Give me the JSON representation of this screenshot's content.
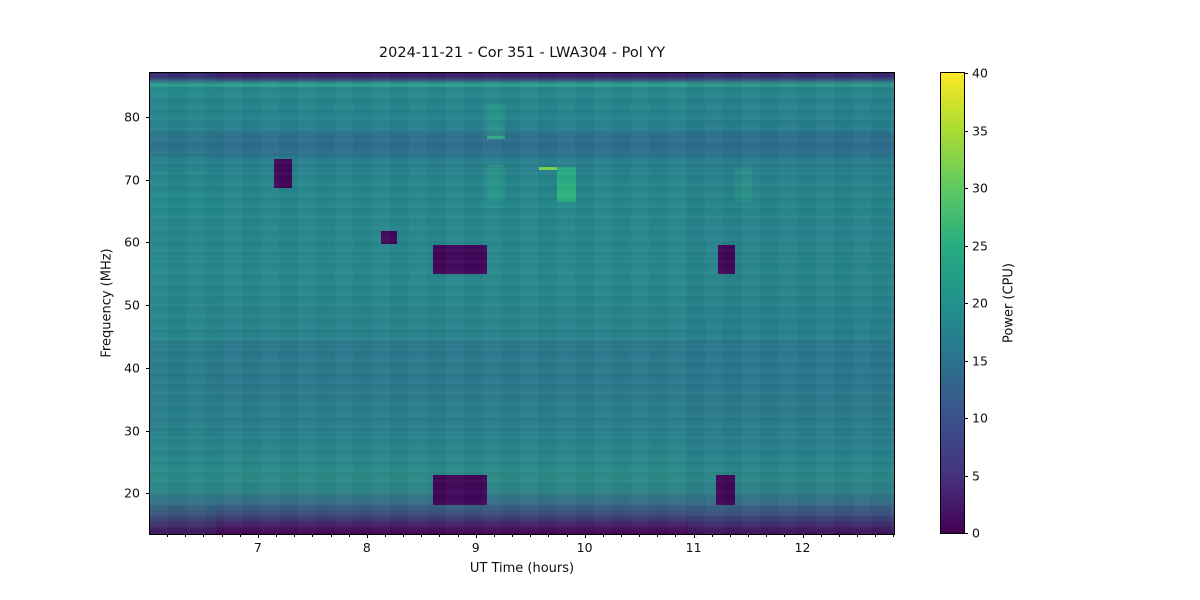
{
  "chart_data": {
    "type": "heatmap",
    "title": "2024-11-21 - Cor 351 - LWA304 - Pol YY",
    "xlabel": "UT Time (hours)",
    "ylabel": "Frequency (MHz)",
    "colorbar_label": "Power (CPU)",
    "colormap": "viridis",
    "x_range": [
      6.01,
      12.84
    ],
    "y_range": [
      13.5,
      87.0
    ],
    "x_ticks": [
      7,
      8,
      9,
      10,
      11,
      12
    ],
    "x_minor_step": 0.166667,
    "y_ticks": [
      20,
      30,
      40,
      50,
      60,
      70,
      80
    ],
    "colorbar_range": [
      0,
      40
    ],
    "colorbar_ticks": [
      0,
      5,
      10,
      15,
      20,
      25,
      30,
      35,
      40
    ],
    "colorbar_stops": [
      {
        "v": 0,
        "c": "#440154"
      },
      {
        "v": 5,
        "c": "#46327e"
      },
      {
        "v": 10,
        "c": "#3b528b"
      },
      {
        "v": 15,
        "c": "#2c728e"
      },
      {
        "v": 20,
        "c": "#21918c"
      },
      {
        "v": 25,
        "c": "#27ad81"
      },
      {
        "v": 30,
        "c": "#5ec962"
      },
      {
        "v": 35,
        "c": "#aadc32"
      },
      {
        "v": 40,
        "c": "#fde725"
      }
    ],
    "background_description": "teal background power ~15-20 CPU; dark indigo band at top edge, dark purple fade at bottom edge, later times slightly bluer",
    "background_stops": [
      {
        "f": 87.0,
        "c": "#32135f"
      },
      {
        "f": 86.4,
        "c": "#3c2271"
      },
      {
        "f": 85.9,
        "c": "#39537f"
      },
      {
        "f": 85.45,
        "c": "#2e8a8c"
      },
      {
        "f": 85.1,
        "c": "#2aa389"
      },
      {
        "f": 84.6,
        "c": "#278b8d"
      },
      {
        "f": 83.0,
        "c": "#26868e"
      },
      {
        "f": 80.0,
        "c": "#26858e"
      },
      {
        "f": 78.0,
        "c": "#287f8e"
      },
      {
        "f": 76.9,
        "c": "#2d6f8d"
      },
      {
        "f": 74.5,
        "c": "#2c6e8d"
      },
      {
        "f": 73.3,
        "c": "#287e8e"
      },
      {
        "f": 70.0,
        "c": "#26868d"
      },
      {
        "f": 66.0,
        "c": "#25898c"
      },
      {
        "f": 62.0,
        "c": "#26878d"
      },
      {
        "f": 54.0,
        "c": "#27898c"
      },
      {
        "f": 46.5,
        "c": "#28838d"
      },
      {
        "f": 44.3,
        "c": "#28838d"
      },
      {
        "f": 44.0,
        "c": "#2a7a8d"
      },
      {
        "f": 38.0,
        "c": "#2b788d"
      },
      {
        "f": 30.0,
        "c": "#29808d"
      },
      {
        "f": 26.0,
        "c": "#28868c"
      },
      {
        "f": 23.0,
        "c": "#2b8b88"
      },
      {
        "f": 20.5,
        "c": "#2c8487"
      },
      {
        "f": 19.0,
        "c": "#317389"
      },
      {
        "f": 17.5,
        "c": "#395c80"
      },
      {
        "f": 16.0,
        "c": "#3f3d74"
      },
      {
        "f": 14.8,
        "c": "#431b63"
      },
      {
        "f": 13.5,
        "c": "#440457"
      }
    ],
    "features": [
      {
        "name": "dropout-7.2h-71MHz",
        "t": [
          7.15,
          7.31
        ],
        "f": [
          68.7,
          73.3
        ],
        "power": 0,
        "color": "#410659",
        "opacity": 1
      },
      {
        "name": "dropout-8.2h-60MHz",
        "t": [
          8.13,
          8.28
        ],
        "f": [
          59.7,
          61.8
        ],
        "power": 0,
        "color": "#410659",
        "opacity": 1
      },
      {
        "name": "dropout-8.8h-57MHz",
        "t": [
          8.61,
          9.1
        ],
        "f": [
          54.9,
          59.6
        ],
        "power": 0,
        "color": "#410659",
        "opacity": 1
      },
      {
        "name": "dropout-11.3h-57MHz",
        "t": [
          11.22,
          11.38
        ],
        "f": [
          54.9,
          59.6
        ],
        "power": 0,
        "color": "#410659",
        "opacity": 1
      },
      {
        "name": "dropout-8.8h-20MHz",
        "t": [
          8.61,
          9.1
        ],
        "f": [
          18.1,
          22.9
        ],
        "power": 0,
        "color": "#410659",
        "opacity": 1
      },
      {
        "name": "dropout-11.3h-20MHz",
        "t": [
          11.21,
          11.38
        ],
        "f": [
          18.1,
          22.9
        ],
        "power": 0,
        "color": "#410659",
        "opacity": 1
      },
      {
        "name": "faint-burst-9.2h-79MHz",
        "t": [
          9.1,
          9.27
        ],
        "f": [
          76.9,
          82.0
        ],
        "power": 22,
        "color": "#2fae85",
        "opacity": 0.3
      },
      {
        "name": "burst-line-9.2h-76.7MHz",
        "t": [
          9.1,
          9.27
        ],
        "f": [
          76.4,
          76.9
        ],
        "power": 27,
        "color": "#36b383",
        "opacity": 0.85
      },
      {
        "name": "faint-burst-9.2h-69MHz",
        "t": [
          9.1,
          9.27
        ],
        "f": [
          66.6,
          72.3
        ],
        "power": 22,
        "color": "#2fae85",
        "opacity": 0.3
      },
      {
        "name": "burst-line-9.65h-71.7MHz",
        "t": [
          9.58,
          9.75
        ],
        "f": [
          71.5,
          71.95
        ],
        "power": 33,
        "color": "#7fd34e",
        "opacity": 1
      },
      {
        "name": "burst-9.85h-69MHz",
        "t": [
          9.75,
          9.92
        ],
        "f": [
          66.5,
          72.1
        ],
        "power": 25,
        "color": "#27ad81",
        "opacity": 0.9
      },
      {
        "name": "burst-9.85h-68MHz-core",
        "t": [
          9.75,
          9.92
        ],
        "f": [
          66.5,
          69.2
        ],
        "power": 27,
        "color": "#2fb77c",
        "opacity": 0.55
      },
      {
        "name": "faint-burst-11.45h-69MHz",
        "t": [
          11.38,
          11.54
        ],
        "f": [
          66.4,
          72.1
        ],
        "power": 21,
        "color": "#2fae85",
        "opacity": 0.25
      }
    ],
    "tints": [
      {
        "name": "late-time-blue-tint",
        "t": [
          10.95,
          12.84
        ],
        "f": [
          13.5,
          87.0
        ],
        "color": "#2c6a92",
        "opacity": 0.13
      },
      {
        "name": "early-time-green-tint",
        "t": [
          6.01,
          6.62
        ],
        "f": [
          13.5,
          87.0
        ],
        "color": "#23938a",
        "opacity": 0.12
      }
    ]
  }
}
